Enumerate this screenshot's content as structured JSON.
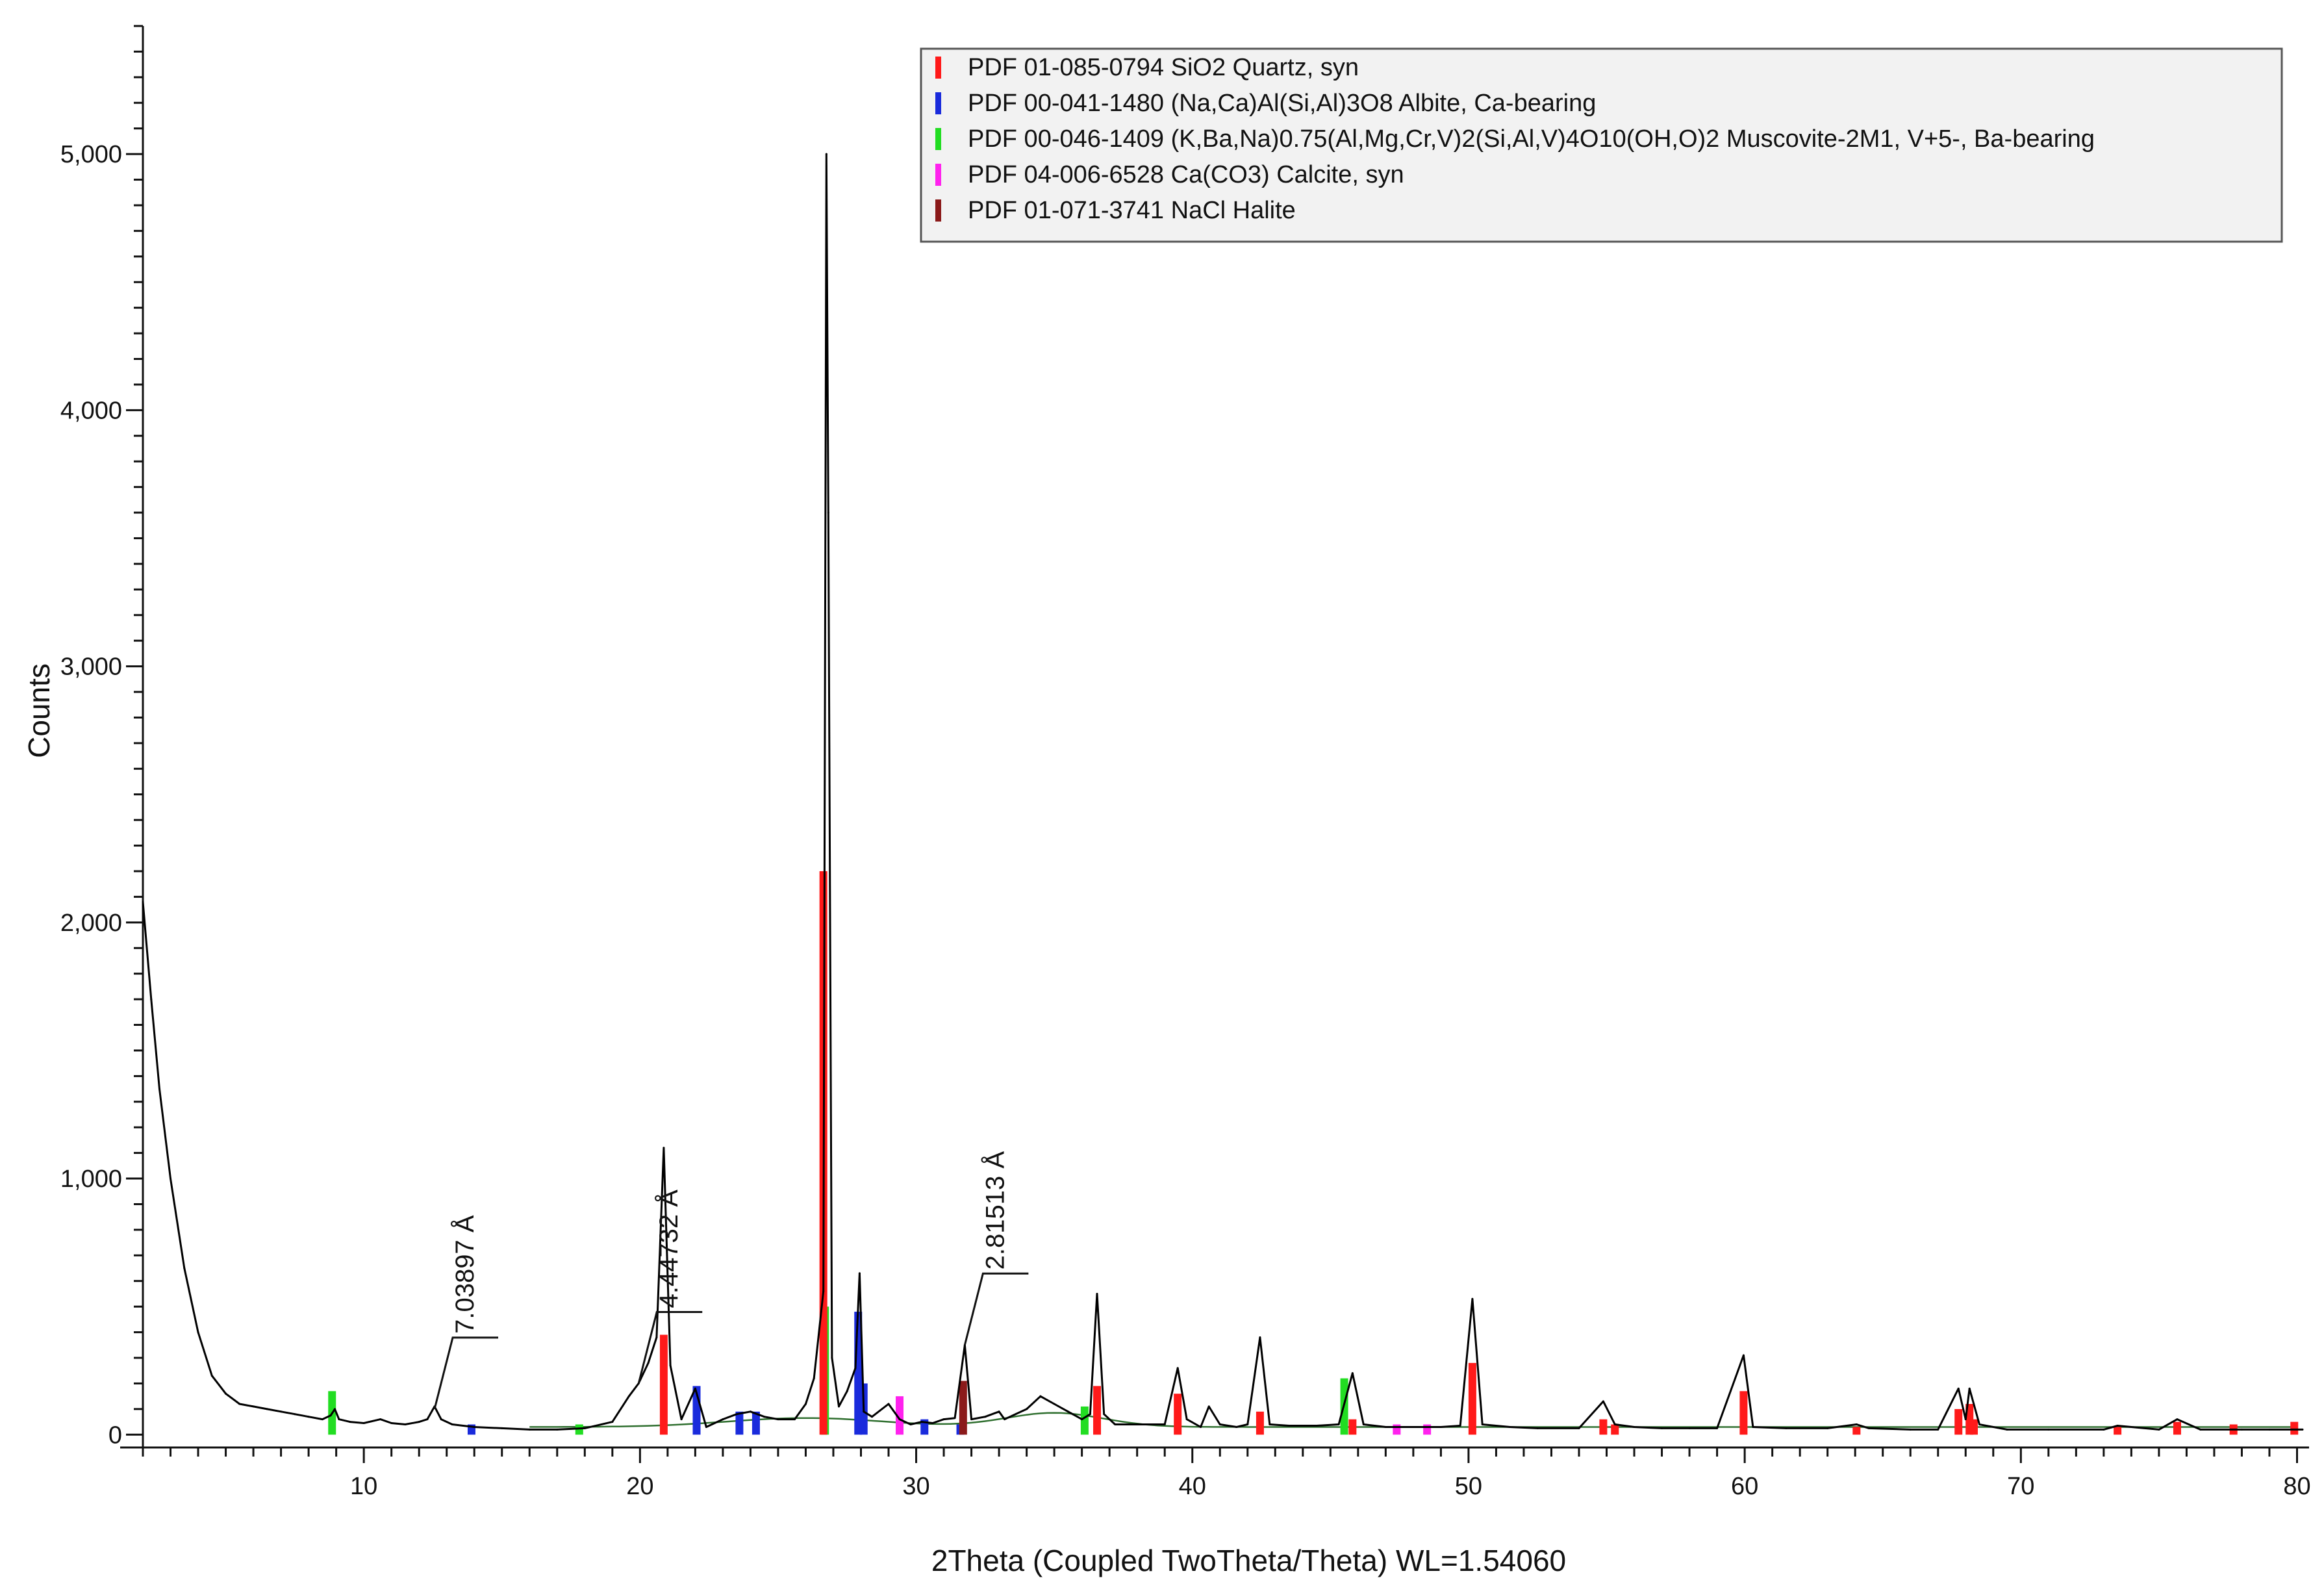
{
  "chart_data": {
    "type": "line",
    "xlabel": "2Theta (Coupled TwoTheta/Theta) WL=1.54060",
    "ylabel": "Counts",
    "xlim": [
      2,
      80.2
    ],
    "ylim": [
      -50,
      5500
    ],
    "xticks": [
      10,
      20,
      30,
      40,
      50,
      60,
      70,
      80
    ],
    "yticks": [
      0,
      1000,
      2000,
      3000,
      4000,
      5000
    ],
    "ytick_labels": [
      "0",
      "1,000",
      "2,000",
      "3,000",
      "4,000",
      "5,000"
    ],
    "legend_position": "top-right",
    "grid": false,
    "legend": [
      {
        "label": "PDF 01-085-0794 SiO2 Quartz, syn",
        "color": "#ff1a1a"
      },
      {
        "label": "PDF 00-041-1480 (Na,Ca)Al(Si,Al)3O8 Albite, Ca-bearing",
        "color": "#1a2bdc"
      },
      {
        "label": "PDF 00-046-1409 (K,Ba,Na)0.75(Al,Mg,Cr,V)2(Si,Al,V)4O10(OH,O)2 Muscovite-2M1, V+5-, Ba-bearing",
        "color": "#22dd22"
      },
      {
        "label": "PDF 04-006-6528 Ca(CO3) Calcite, syn",
        "color": "#ff22ee"
      },
      {
        "label": "PDF 01-071-3741 NaCl Halite",
        "color": "#8b1a1a"
      }
    ],
    "annotations": [
      {
        "label": "7.03897 Å",
        "x": 12.56,
        "y": 100
      },
      {
        "label": "4.44732 Å",
        "x": 19.95,
        "y": 200
      },
      {
        "label": "2.81513 Å",
        "x": 31.76,
        "y": 350
      }
    ],
    "series": [
      {
        "color": "#000000",
        "x": [
          2.0,
          2.3,
          2.6,
          3.0,
          3.5,
          4.0,
          4.5,
          5.0,
          5.5,
          6.0,
          6.5,
          7.0,
          7.5,
          8.0,
          8.5,
          8.8,
          8.95,
          9.1,
          9.5,
          10.0,
          10.6,
          11.0,
          11.5,
          12.0,
          12.3,
          12.56,
          12.8,
          13.2,
          14.0,
          15.0,
          16.0,
          17.0,
          18.0,
          19.0,
          19.6,
          19.95,
          20.3,
          20.6,
          20.86,
          21.1,
          21.5,
          22.0,
          22.4,
          23.0,
          23.5,
          24.0,
          24.5,
          25.0,
          25.6,
          26.0,
          26.3,
          26.64,
          26.75,
          26.82,
          26.95,
          27.2,
          27.5,
          27.8,
          27.95,
          28.1,
          28.4,
          29.0,
          29.4,
          29.8,
          30.2,
          30.6,
          31.0,
          31.4,
          31.76,
          32.0,
          32.5,
          33.0,
          33.2,
          33.6,
          34.0,
          34.5,
          35.0,
          35.5,
          36.0,
          36.3,
          36.55,
          36.8,
          37.2,
          38.0,
          39.0,
          39.47,
          39.8,
          40.3,
          40.6,
          41.0,
          41.6,
          42.0,
          42.45,
          42.8,
          43.5,
          44.5,
          45.3,
          45.8,
          46.2,
          47.0,
          48.0,
          49.0,
          49.7,
          50.14,
          50.5,
          51.5,
          52.5,
          54.0,
          54.88,
          55.3,
          56.0,
          57.0,
          58.0,
          59.0,
          59.96,
          60.3,
          61.5,
          63.0,
          64.05,
          64.5,
          66.0,
          67.0,
          67.74,
          68.0,
          68.14,
          68.5,
          69.5,
          71.0,
          73.0,
          73.5,
          75.0,
          75.66,
          76.5,
          78.0,
          79.0,
          80.2
        ],
        "y": [
          2080,
          1700,
          1350,
          1000,
          650,
          400,
          230,
          160,
          120,
          110,
          100,
          90,
          80,
          70,
          60,
          75,
          100,
          60,
          50,
          45,
          60,
          45,
          40,
          50,
          60,
          110,
          60,
          40,
          30,
          25,
          20,
          20,
          25,
          50,
          150,
          200,
          280,
          380,
          1120,
          270,
          60,
          180,
          30,
          60,
          80,
          90,
          70,
          60,
          60,
          120,
          220,
          560,
          5000,
          3600,
          300,
          110,
          170,
          260,
          630,
          90,
          70,
          120,
          60,
          40,
          50,
          45,
          60,
          65,
          350,
          60,
          70,
          90,
          60,
          80,
          100,
          150,
          120,
          90,
          60,
          80,
          550,
          80,
          40,
          40,
          40,
          260,
          60,
          30,
          110,
          40,
          30,
          40,
          380,
          40,
          35,
          35,
          40,
          240,
          40,
          30,
          30,
          30,
          35,
          530,
          40,
          30,
          25,
          25,
          130,
          40,
          30,
          25,
          25,
          25,
          310,
          30,
          25,
          25,
          40,
          25,
          20,
          20,
          180,
          60,
          180,
          40,
          20,
          20,
          20,
          35,
          20,
          60,
          20,
          20,
          20,
          20
        ]
      }
    ]
  }
}
